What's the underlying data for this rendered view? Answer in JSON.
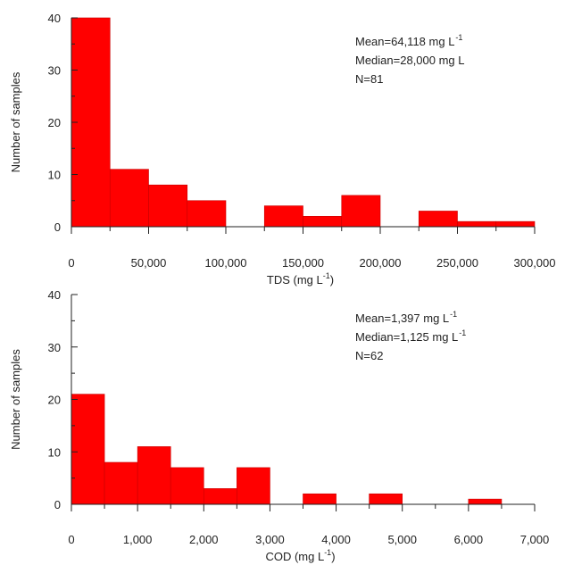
{
  "chart_data": [
    {
      "type": "bar",
      "panel": "tds",
      "bins": [
        [
          0,
          25000
        ],
        [
          25000,
          50000
        ],
        [
          50000,
          75000
        ],
        [
          75000,
          100000
        ],
        [
          125000,
          150000
        ],
        [
          150000,
          175000
        ],
        [
          175000,
          200000
        ],
        [
          225000,
          250000
        ],
        [
          250000,
          275000
        ],
        [
          275000,
          300000
        ]
      ],
      "values": [
        40,
        11,
        8,
        5,
        4,
        2,
        6,
        3,
        1,
        1
      ],
      "bar_color": "#ff0000",
      "xlim": [
        0,
        300000
      ],
      "ylim": [
        0,
        40
      ],
      "xticks": [
        0,
        50000,
        100000,
        150000,
        200000,
        250000,
        300000
      ],
      "xtick_labels": [
        "0",
        "50,000",
        "100,000",
        "150,000",
        "200,000",
        "250,000",
        "300,000"
      ],
      "yticks": [
        0,
        10,
        20,
        30,
        40
      ],
      "ytick_labels": [
        "0",
        "10",
        "20",
        "30",
        "40"
      ],
      "xlabel": {
        "main": "TDS (mg L",
        "sup": "-1",
        "tail": ")"
      },
      "ylabel": "Number of samples",
      "annotations": [
        {
          "main": "Mean=64,118 mg L",
          "sup": "-1"
        },
        {
          "main": "Median=28,000 mg L",
          "sup": ""
        },
        {
          "main": "N=81",
          "sup": ""
        }
      ]
    },
    {
      "type": "bar",
      "panel": "cod",
      "bins": [
        [
          0,
          500
        ],
        [
          500,
          1000
        ],
        [
          1000,
          1500
        ],
        [
          1500,
          2000
        ],
        [
          2000,
          2500
        ],
        [
          2500,
          3000
        ],
        [
          3500,
          4000
        ],
        [
          4500,
          5000
        ],
        [
          6000,
          6500
        ]
      ],
      "values": [
        21,
        8,
        11,
        7,
        3,
        7,
        2,
        2,
        1
      ],
      "bar_color": "#ff0000",
      "xlim": [
        0,
        7000
      ],
      "ylim": [
        0,
        40
      ],
      "xticks": [
        0,
        1000,
        2000,
        3000,
        4000,
        5000,
        6000,
        7000
      ],
      "xtick_labels": [
        "0",
        "1,000",
        "2,000",
        "3,000",
        "4,000",
        "5,000",
        "6,000",
        "7,000"
      ],
      "yticks": [
        0,
        10,
        20,
        30,
        40
      ],
      "ytick_labels": [
        "0",
        "10",
        "20",
        "30",
        "40"
      ],
      "xlabel": {
        "main": "COD (mg L",
        "sup": "-1",
        "tail": ")"
      },
      "ylabel": "Number of samples",
      "annotations": [
        {
          "main": "Mean=1,397 mg L",
          "sup": "-1"
        },
        {
          "main": "Median=1,125 mg L",
          "sup": "-1"
        },
        {
          "main": "N=62",
          "sup": ""
        }
      ]
    }
  ]
}
